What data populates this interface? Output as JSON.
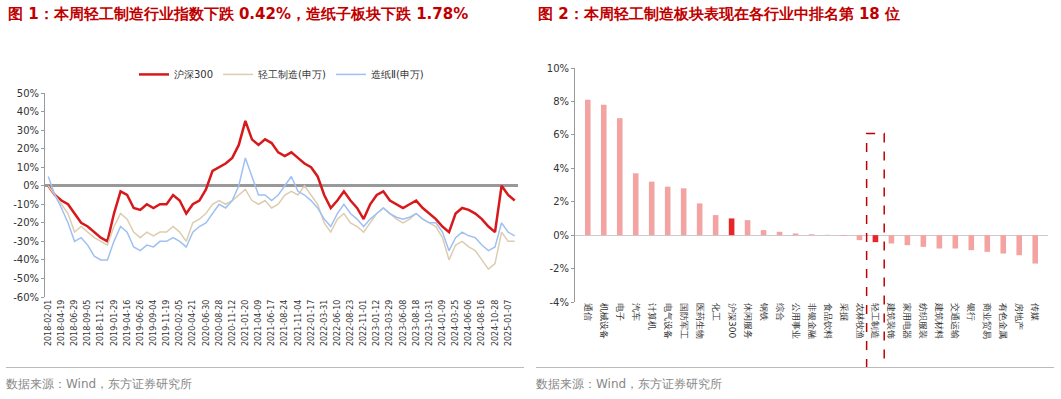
{
  "chart_data": [
    {
      "type": "line",
      "title": "图 1：本周轻工制造行业指数下跌 0.42%，造纸子板块下跌 1.78%",
      "source": "数据来源：Wind，东方证券研究所",
      "categories": [
        "2018-02-01",
        null,
        "2018-04-19",
        null,
        "2018-06-29",
        null,
        "2018-09-05",
        null,
        "2018-11-21",
        null,
        "2019-01-29",
        null,
        "2019-04-16",
        null,
        "2019-06-26",
        null,
        "2019-09-04",
        null,
        "2019-11-19",
        null,
        "2020-02-05",
        null,
        "2020-04-21",
        null,
        "2020-06-30",
        null,
        "2020-08-28",
        null,
        "2020-11-12",
        null,
        "2021-01-20",
        null,
        "2021-04-09",
        null,
        "2021-06-17",
        null,
        "2021-08-24",
        null,
        "2021-11-04",
        null,
        "2022-01-17",
        null,
        "2022-03-31",
        null,
        "2022-06-10",
        null,
        "2022-08-23",
        null,
        "2022-11-01",
        null,
        "2023-01-12",
        null,
        "2023-03-29",
        null,
        "2023-06-08",
        null,
        "2023-08-18",
        null,
        "2023-10-31",
        null,
        "2024-01-09",
        null,
        "2024-03-25",
        null,
        "2024-06-06",
        null,
        "2024-08-16",
        null,
        "2024-10-28",
        null,
        "2025-01-07",
        null
      ],
      "series": [
        {
          "name": "沪深300",
          "color": "#d7191c",
          "values": [
            0,
            -5,
            -8,
            -10,
            -15,
            -20,
            -22,
            -25,
            -28,
            -30,
            -15,
            -3,
            -5,
            -12,
            -13,
            -10,
            -12,
            -10,
            -10,
            -5,
            -8,
            -15,
            -10,
            -8,
            -2,
            8,
            10,
            12,
            15,
            22,
            35,
            25,
            22,
            25,
            23,
            18,
            16,
            18,
            15,
            12,
            10,
            5,
            -5,
            -12,
            -8,
            -3,
            -8,
            -12,
            -18,
            -10,
            -5,
            -3,
            -8,
            -10,
            -12,
            -10,
            -8,
            -12,
            -15,
            -18,
            -22,
            -25,
            -15,
            -12,
            -13,
            -15,
            -18,
            -22,
            -25,
            0,
            -5,
            -8
          ]
        },
        {
          "name": "轻工制造(申万)",
          "color": "#dccdb0",
          "values": [
            0,
            -5,
            -10,
            -15,
            -25,
            -22,
            -25,
            -28,
            -30,
            -32,
            -22,
            -15,
            -18,
            -25,
            -28,
            -25,
            -27,
            -25,
            -25,
            -22,
            -25,
            -30,
            -20,
            -18,
            -15,
            -10,
            -8,
            -10,
            -8,
            -5,
            -2,
            -8,
            -10,
            -8,
            -12,
            -10,
            -5,
            -3,
            -5,
            0,
            -5,
            -10,
            -20,
            -25,
            -18,
            -15,
            -20,
            -22,
            -25,
            -20,
            -15,
            -12,
            -15,
            -18,
            -20,
            -18,
            -15,
            -18,
            -20,
            -22,
            -28,
            -40,
            -32,
            -30,
            -33,
            -35,
            -40,
            -45,
            -42,
            -25,
            -30,
            -30
          ]
        },
        {
          "name": "造纸Ⅱ(申万)",
          "color": "#9ec0f2",
          "values": [
            5,
            -5,
            -12,
            -20,
            -30,
            -28,
            -32,
            -38,
            -40,
            -40,
            -30,
            -22,
            -25,
            -33,
            -35,
            -32,
            -33,
            -30,
            -30,
            -28,
            -30,
            -33,
            -25,
            -22,
            -20,
            -15,
            -10,
            -12,
            -8,
            0,
            15,
            5,
            -5,
            -5,
            -8,
            -5,
            0,
            5,
            -3,
            -5,
            -8,
            -12,
            -18,
            -22,
            -15,
            -10,
            -15,
            -18,
            -22,
            -18,
            -15,
            -12,
            -15,
            -17,
            -18,
            -17,
            -15,
            -18,
            -20,
            -20,
            -25,
            -35,
            -28,
            -25,
            -27,
            -28,
            -32,
            -35,
            -33,
            -20,
            -25,
            -27
          ]
        }
      ],
      "ylim": [
        -60,
        50
      ],
      "yticks": [
        {
          "value": -60,
          "label": "-60%"
        },
        {
          "value": -50,
          "label": "-50%"
        },
        {
          "value": -40,
          "label": "-40%"
        },
        {
          "value": -30,
          "label": "-30%"
        },
        {
          "value": -20,
          "label": "-20%"
        },
        {
          "value": -10,
          "label": "-10%"
        },
        {
          "value": 0,
          "label": "0%"
        },
        {
          "value": 10,
          "label": "10%"
        },
        {
          "value": 20,
          "label": "20%"
        },
        {
          "value": 30,
          "label": "30%"
        },
        {
          "value": 40,
          "label": "40%"
        },
        {
          "value": 50,
          "label": "50%"
        }
      ],
      "grid": false,
      "legend": "top"
    },
    {
      "type": "bar",
      "title": "图 2：本周轻工制造板块表现在各行业中排名第 18 位",
      "source": "数据来源：Wind，东方证券研究所",
      "categories": [
        "通信",
        "机械设备",
        "电子",
        "汽车",
        "计算机",
        "电气设备",
        "国防军工",
        "医药生物",
        "化工",
        "沪深300",
        "休闲服务",
        "钢铁",
        "综合",
        "公用事业",
        "非银金融",
        "食品饮料",
        "采掘",
        "农林牧渔",
        "轻工制造",
        "建筑装饰",
        "家用电器",
        "纺织服装",
        "建筑材料",
        "交通运输",
        "银行",
        "商业贸易",
        "有色金属",
        "房地产",
        "传媒"
      ],
      "values": [
        8.1,
        7.8,
        7.0,
        3.7,
        3.2,
        2.9,
        2.8,
        1.9,
        1.2,
        1.0,
        0.9,
        0.3,
        0.2,
        0.1,
        0.05,
        0.02,
        -0.05,
        -0.3,
        -0.42,
        -0.5,
        -0.6,
        -0.7,
        -0.8,
        -0.8,
        -0.9,
        -1.0,
        -1.1,
        -1.2,
        -1.7
      ],
      "colors": [
        "#f4a3a3",
        "#f4a3a3",
        "#f4a3a3",
        "#f4a3a3",
        "#f4a3a3",
        "#f4a3a3",
        "#f4a3a3",
        "#f4a3a3",
        "#f4a3a3",
        "#e8262a",
        "#f4a3a3",
        "#f4a3a3",
        "#f4a3a3",
        "#f4a3a3",
        "#f4a3a3",
        "#f4a3a3",
        "#f4a3a3",
        "#f4a3a3",
        "#e8262a",
        "#f4a3a3",
        "#f4a3a3",
        "#f4a3a3",
        "#f4a3a3",
        "#f4a3a3",
        "#f4a3a3",
        "#f4a3a3",
        "#f4a3a3",
        "#f4a3a3",
        "#f4a3a3"
      ],
      "ylim": [
        -4,
        10
      ],
      "yticks": [
        {
          "value": -4,
          "label": "-4%"
        },
        {
          "value": -2,
          "label": "-2%"
        },
        {
          "value": 0,
          "label": "0%"
        },
        {
          "value": 2,
          "label": "2%"
        },
        {
          "value": 4,
          "label": "4%"
        },
        {
          "value": 6,
          "label": "6%"
        },
        {
          "value": 8,
          "label": "8%"
        },
        {
          "value": 10,
          "label": "10%"
        }
      ],
      "grid": false
    }
  ]
}
